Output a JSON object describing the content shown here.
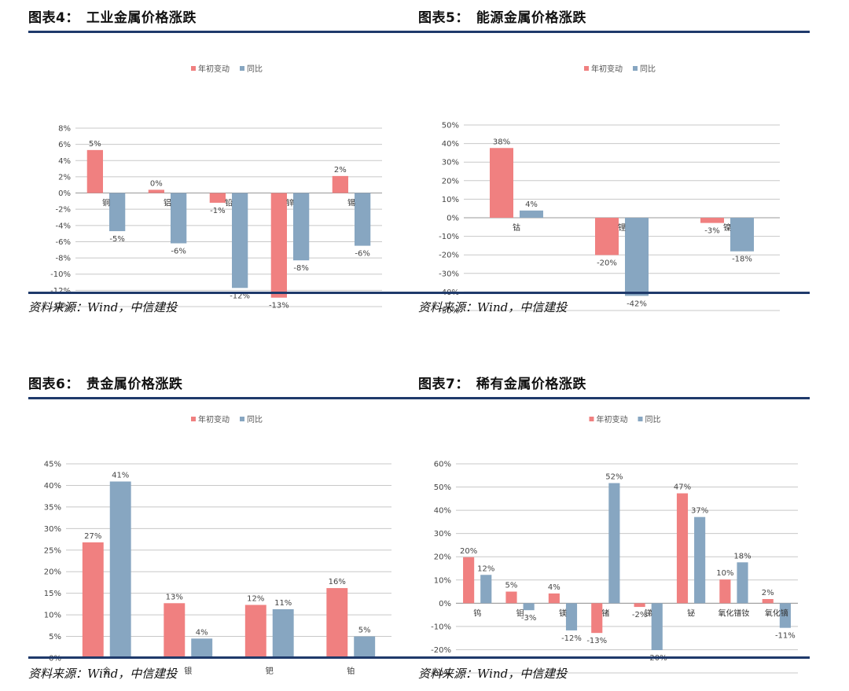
{
  "colors": {
    "s1": "#f08080",
    "s2": "#87a6c1",
    "rule": "#1f3a6b",
    "grid": "#c8c8c8"
  },
  "panels": [
    {
      "title": "图表4：　工业金属价格涨跌",
      "source": "资料来源：Wind，中信建投",
      "chart_data": {
        "type": "bar",
        "categories": [
          "铜",
          "铝",
          "铅",
          "锌",
          "锡"
        ],
        "series": [
          {
            "name": "年初变动",
            "values": [
              5.3,
              0.4,
              -1.2,
              -12.9,
              2.1
            ],
            "labels": [
              "5%",
              "0%",
              "-1%",
              "-13%",
              "2%"
            ]
          },
          {
            "name": "同比",
            "values": [
              -4.7,
              -6.2,
              -11.7,
              -8.3,
              -6.5
            ],
            "labels": [
              "-5%",
              "-6%",
              "-12%",
              "-8%",
              "-6%"
            ]
          }
        ],
        "yticks": [
          "8%",
          "6%",
          "4%",
          "2%",
          "0%",
          "-2%",
          "-4%",
          "-6%",
          "-8%",
          "-10%",
          "-12%",
          "-14%"
        ],
        "ylim": [
          -14,
          8
        ],
        "cat_at_zero": true
      }
    },
    {
      "title": "图表5：　能源金属价格涨跌",
      "source": "资料来源：Wind，中信建投",
      "chart_data": {
        "type": "bar",
        "categories": [
          "钴",
          "锂",
          "镍"
        ],
        "series": [
          {
            "name": "年初变动",
            "values": [
              37.6,
              -20.1,
              -2.8
            ],
            "labels": [
              "38%",
              "-20%",
              "-3%"
            ]
          },
          {
            "name": "同比",
            "values": [
              3.9,
              -42.1,
              -18.1
            ],
            "labels": [
              "4%",
              "-42%",
              "-18%"
            ]
          }
        ],
        "yticks": [
          "50%",
          "40%",
          "30%",
          "20%",
          "10%",
          "0%",
          "-10%",
          "-20%",
          "-30%",
          "-40%",
          "-50%"
        ],
        "ylim": [
          -50,
          50
        ],
        "cat_at_zero": true
      }
    },
    {
      "title": "图表6：　贵金属价格涨跌",
      "source": "资料来源：Wind，中信建投",
      "chart_data": {
        "type": "bar",
        "categories": [
          "金",
          "银",
          "钯",
          "铂"
        ],
        "series": [
          {
            "name": "年初变动",
            "values": [
              26.8,
              12.7,
              12.3,
              16.2
            ],
            "labels": [
              "27%",
              "13%",
              "12%",
              "16%"
            ]
          },
          {
            "name": "同比",
            "values": [
              40.9,
              4.5,
              11.3,
              5.0
            ],
            "labels": [
              "41%",
              "4%",
              "11%",
              "5%"
            ]
          }
        ],
        "yticks": [
          "45%",
          "40%",
          "35%",
          "30%",
          "25%",
          "20%",
          "15%",
          "10%",
          "5%",
          "0%"
        ],
        "ylim": [
          0,
          45
        ],
        "cat_at_zero": false
      }
    },
    {
      "title": "图表7：　稀有金属价格涨跌",
      "source": "资料来源：Wind，中信建投",
      "chart_data": {
        "type": "bar",
        "categories": [
          "钨",
          "钼",
          "镁",
          "锗",
          "锑",
          "铋",
          "氧化镨钕",
          "氧化镝"
        ],
        "series": [
          {
            "name": "年初变动",
            "values": [
              19.8,
              5.0,
              4.2,
              -12.8,
              -1.6,
              47.3,
              10.2,
              1.8
            ],
            "labels": [
              "20%",
              "5%",
              "4%",
              "-13%",
              "-2%",
              "47%",
              "10%",
              "2%"
            ]
          },
          {
            "name": "同比",
            "values": [
              12.2,
              -3.0,
              -11.7,
              51.7,
              -20.2,
              37.1,
              17.6,
              -10.6
            ],
            "labels": [
              "12%",
              "-3%",
              "-12%",
              "52%",
              "-20%",
              "37%",
              "18%",
              "-11%"
            ]
          }
        ],
        "yticks": [
          "60%",
          "50%",
          "40%",
          "30%",
          "20%",
          "10%",
          "0%",
          "-10%",
          "-20%",
          "-30%"
        ],
        "ylim": [
          -30,
          60
        ],
        "cat_at_zero": true
      }
    }
  ]
}
